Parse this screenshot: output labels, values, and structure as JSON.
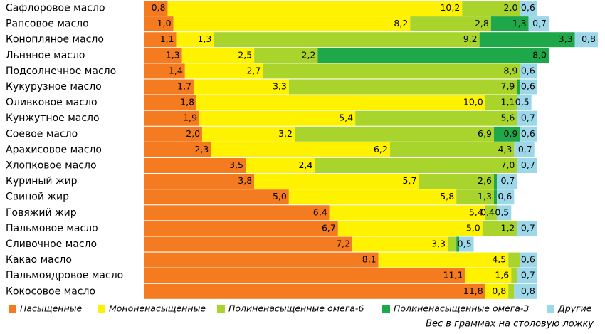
{
  "chart_data": {
    "type": "stacked-barh",
    "note": "Вес в граммах на столовую ложку",
    "categories": [
      "Сафлоровое масло",
      "Рапсовое масло",
      "Конопляное масло",
      "Льняное масло",
      "Подсолнечное масло",
      "Кукурузное масло",
      "Оливковое масло",
      "Кунжутное масло",
      "Соевое масло",
      "Арахисовое масло",
      "Хлопковое масло",
      "Куриный жир",
      "Свиной жир",
      "Говяжий жир",
      "Пальмовое масло",
      "Сливочное масло",
      "Какао масло",
      "Пальмоядровое масло",
      "Кокосовое масло"
    ],
    "series": [
      {
        "name": "Насыщенные",
        "color": "#f47b20",
        "values": [
          0.8,
          1.0,
          1.1,
          1.3,
          1.4,
          1.7,
          1.8,
          1.9,
          2.0,
          2.3,
          3.5,
          3.8,
          5.0,
          6.4,
          6.7,
          7.2,
          8.1,
          11.1,
          11.8
        ],
        "value_labels": [
          "0,8",
          "1,0",
          "1,1",
          "1,3",
          "1,4",
          "1,7",
          "1,8",
          "1,9",
          "2,0",
          "2,3",
          "3,5",
          "3,8",
          "5,0",
          "6,4",
          "6,7",
          "7,2",
          "8,1",
          "11,1",
          "11,8"
        ]
      },
      {
        "name": "Мононенасыщенные",
        "color": "#fff200",
        "values": [
          10.2,
          8.2,
          1.3,
          2.5,
          2.7,
          3.3,
          10.0,
          5.4,
          3.2,
          6.2,
          2.4,
          5.7,
          5.8,
          5.4,
          5.0,
          3.3,
          4.5,
          1.6,
          0.8
        ],
        "value_labels": [
          "10,2",
          "8,2",
          "1,3",
          "2,5",
          "2,7",
          "3,3",
          "10,0",
          "5,4",
          "3,2",
          "6,2",
          "2,4",
          "5,7",
          "5,8",
          "5,4",
          "5,0",
          "3,3",
          "4,5",
          "1,6",
          "0,8"
        ]
      },
      {
        "name": "Полиненасыщенные омега-6",
        "color": "#a8d42c",
        "values": [
          2.0,
          2.8,
          9.2,
          2.2,
          8.9,
          7.9,
          1.1,
          5.6,
          6.9,
          4.3,
          7.0,
          2.6,
          1.3,
          0.4,
          1.2,
          0.3,
          0.4,
          0.2,
          0.2
        ],
        "value_labels": [
          "2,0",
          "2,8",
          "9,2",
          "2,2",
          "8,9",
          "7,9",
          "1,1",
          "5,6",
          "6,9",
          "4,3",
          "7,0",
          "2,6",
          "1,3",
          "0,4",
          "1,2",
          null,
          null,
          null,
          null
        ]
      },
      {
        "name": "Полиненасыщенные омега-3",
        "color": "#1fa84a",
        "values": [
          null,
          1.3,
          3.3,
          8.0,
          null,
          0.1,
          null,
          null,
          0.9,
          null,
          null,
          0.1,
          0.1,
          null,
          null,
          0.1,
          null,
          null,
          null
        ],
        "value_labels": [
          null,
          "1,3",
          "3,3",
          "8,0",
          null,
          null,
          null,
          null,
          "0,9",
          null,
          null,
          null,
          null,
          null,
          null,
          null,
          null,
          null,
          null
        ]
      },
      {
        "name": "Другие",
        "color": "#9dd8ea",
        "values": [
          0.6,
          0.7,
          0.8,
          null,
          0.6,
          0.6,
          0.5,
          0.7,
          0.6,
          0.7,
          0.7,
          0.7,
          0.6,
          0.5,
          0.7,
          0.5,
          0.6,
          0.7,
          0.8
        ],
        "value_labels": [
          "0,6",
          "0,7",
          "0,8",
          null,
          "0,6",
          "0,6",
          "0,5",
          "0,7",
          "0,6",
          "0,7",
          "0,7",
          "0,7",
          "0,6",
          "0,5",
          "0,7",
          "0,5",
          "0,6",
          "0,7",
          "0,8"
        ]
      }
    ]
  }
}
